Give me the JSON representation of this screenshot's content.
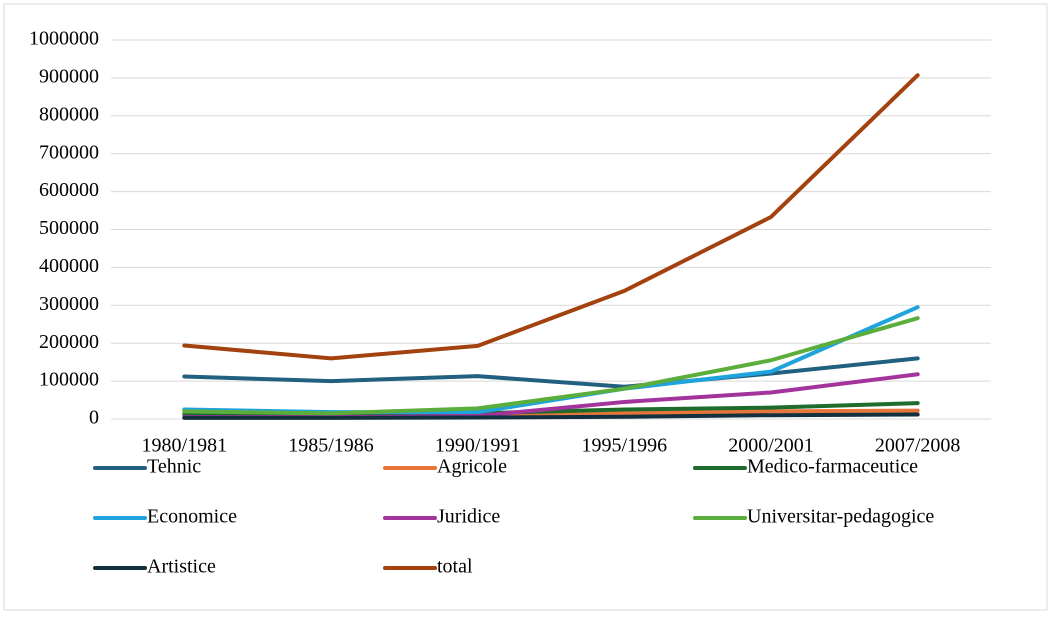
{
  "chart_data": {
    "type": "line",
    "categories": [
      "1980/1981",
      "1985/1986",
      "1990/1991",
      "1995/1996",
      "2000/2001",
      "2007/2008"
    ],
    "series": [
      {
        "name": "Tehnic",
        "color": "#22607f",
        "values": [
          112000,
          100000,
          113000,
          85000,
          120000,
          160000
        ]
      },
      {
        "name": "Agricole",
        "color": "#e8763a",
        "values": [
          10000,
          8000,
          8000,
          15000,
          20000,
          22000
        ]
      },
      {
        "name": "Medico-farmaceutice",
        "color": "#1f6b2b",
        "values": [
          12000,
          12000,
          15000,
          25000,
          30000,
          42000
        ]
      },
      {
        "name": "Economice",
        "color": "#1ea3dc",
        "values": [
          25000,
          18000,
          18000,
          80000,
          125000,
          295000
        ]
      },
      {
        "name": "Juridice",
        "color": "#a2349c",
        "values": [
          5000,
          5000,
          8000,
          45000,
          70000,
          118000
        ]
      },
      {
        "name": "Universitar-pedagogice",
        "color": "#5cae3c",
        "values": [
          20000,
          15000,
          28000,
          80000,
          155000,
          266000
        ]
      },
      {
        "name": "Artistice",
        "color": "#12303f",
        "values": [
          3000,
          3000,
          4000,
          6000,
          10000,
          12000
        ]
      },
      {
        "name": "total",
        "color": "#a3420f",
        "values": [
          194000,
          160000,
          193000,
          338000,
          533000,
          907000
        ]
      }
    ],
    "ylim": [
      0,
      1000000
    ],
    "yticks": [
      0,
      100000,
      200000,
      300000,
      400000,
      500000,
      600000,
      700000,
      800000,
      900000,
      1000000
    ],
    "grid": true,
    "legend": "bottom"
  }
}
